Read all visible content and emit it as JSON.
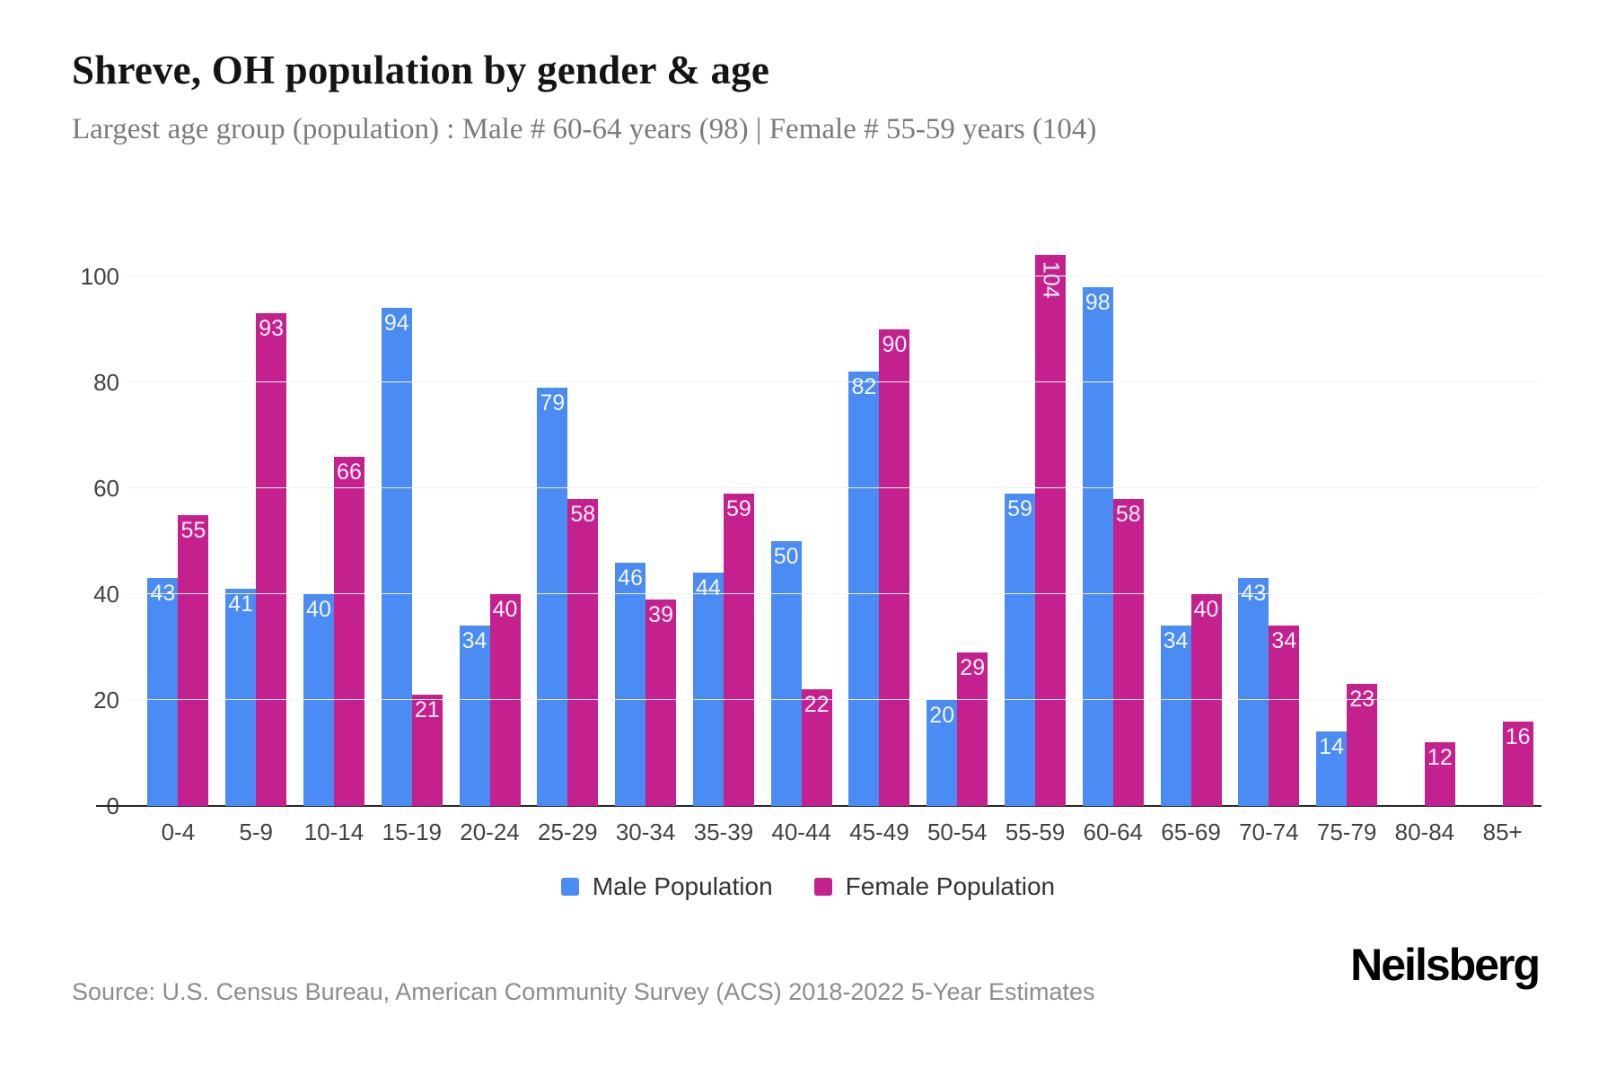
{
  "title": "Shreve, OH population by gender & age",
  "subtitle": "Largest age group (population) : Male # 60-64 years (98) | Female # 55-59 years (104)",
  "source": "Source: U.S. Census Bureau, American Community Survey (ACS) 2018-2022 5-Year Estimates",
  "brand": "Neilsberg",
  "colors": {
    "male": "#4a8bf4",
    "female": "#c4208e",
    "grid": "#f1f1f1",
    "axis": "#282828"
  },
  "legend": {
    "items": [
      {
        "label": "Male Population",
        "color": "#4a8bf4"
      },
      {
        "label": "Female Population",
        "color": "#c4208e"
      }
    ]
  },
  "chart_data": {
    "type": "bar",
    "title": "Shreve, OH population by gender & age",
    "xlabel": "",
    "ylabel": "",
    "categories": [
      "0-4",
      "5-9",
      "10-14",
      "15-19",
      "20-24",
      "25-29",
      "30-34",
      "35-39",
      "40-44",
      "45-49",
      "50-54",
      "55-59",
      "60-64",
      "65-69",
      "70-74",
      "75-79",
      "80-84",
      "85+"
    ],
    "series": [
      {
        "name": "Male Population",
        "color": "#4a8bf4",
        "values": [
          43,
          41,
          40,
          94,
          34,
          79,
          46,
          44,
          50,
          82,
          20,
          59,
          98,
          34,
          43,
          14,
          0,
          0
        ]
      },
      {
        "name": "Female Population",
        "color": "#c4208e",
        "values": [
          55,
          93,
          66,
          21,
          40,
          58,
          39,
          59,
          22,
          90,
          29,
          104,
          58,
          40,
          34,
          23,
          12,
          16
        ]
      }
    ],
    "ylim": [
      0,
      100
    ],
    "yticks": [
      0,
      20,
      40,
      60,
      80,
      100
    ],
    "grid": true,
    "legend_position": "bottom"
  }
}
